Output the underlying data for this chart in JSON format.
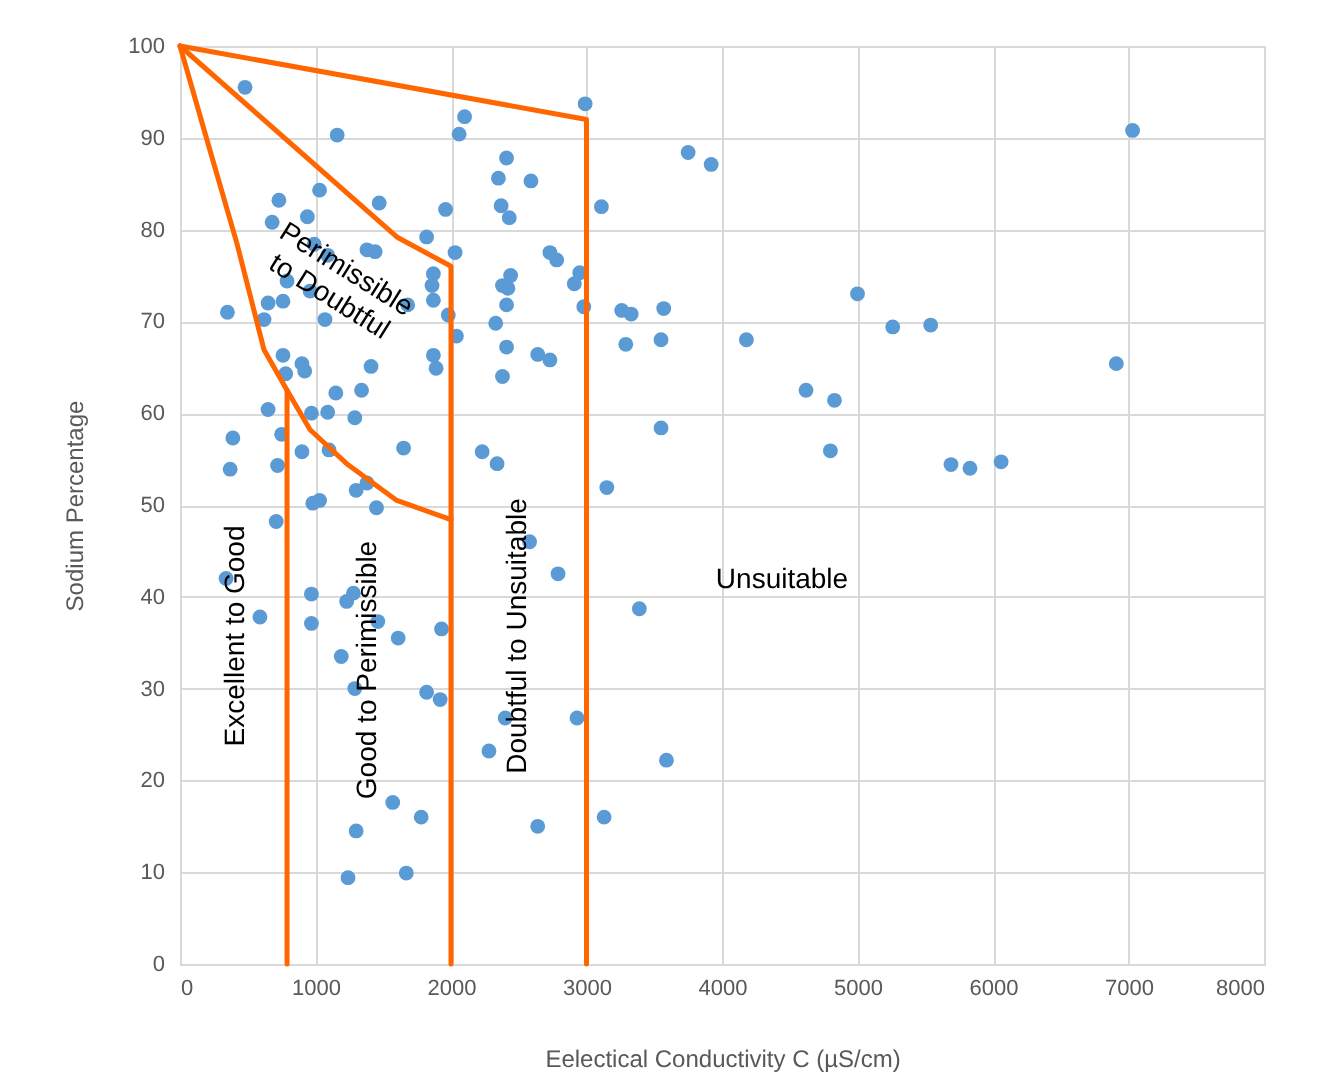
{
  "chart_data": {
    "type": "scatter",
    "xlabel": "Eelectical Conductivity C (µS/cm)",
    "ylabel": "Sodium Percentage",
    "xlim": [
      0,
      8000
    ],
    "xticks": [
      0,
      1000,
      2000,
      3000,
      4000,
      5000,
      6000,
      7000,
      8000
    ],
    "ylim": [
      0,
      100
    ],
    "yticks": [
      0,
      10,
      20,
      30,
      40,
      50,
      60,
      70,
      80,
      90,
      100
    ],
    "grid": true,
    "series": [
      {
        "marker": "circle",
        "color": "#5b9bd5",
        "x": [
          480,
          1160,
          2100,
          2060,
          2990,
          2410,
          2350,
          2590,
          1030,
          1470,
          730,
          2370,
          2430,
          1960,
          3110,
          680,
          940,
          1820,
          990,
          1440,
          1380,
          1090,
          2030,
          2730,
          2780,
          1870,
          2950,
          790,
          2440,
          2910,
          960,
          1860,
          2380,
          2420,
          650,
          760,
          350,
          1070,
          1680,
          1870,
          1980,
          2410,
          2980,
          620,
          2330,
          2040,
          2410,
          760,
          900,
          920,
          780,
          1410,
          1870,
          1890,
          2640,
          2730,
          2380,
          1150,
          1340,
          650,
          970,
          1090,
          1290,
          750,
          390,
          1650,
          2230,
          2340,
          370,
          720,
          900,
          1100,
          1300,
          1380,
          980,
          1030,
          1450,
          3150,
          710,
          340,
          590,
          970,
          970,
          1230,
          1280,
          1460,
          1610,
          1930,
          1190,
          1290,
          1820,
          1920,
          2580,
          2790,
          2400,
          2930,
          2280,
          1570,
          1780,
          1300,
          2640,
          3130,
          1240,
          1670,
          3750,
          3920,
          5000,
          3260,
          3330,
          3570,
          3290,
          3550,
          4180,
          5260,
          5540,
          4620,
          4830,
          3550,
          4800,
          5690,
          5830,
          6060,
          6910,
          7030,
          3390,
          3590
        ],
        "values": [
          95.5,
          90.3,
          92.3,
          90.4,
          93.7,
          87.8,
          85.6,
          85.3,
          84.3,
          82.9,
          83.2,
          82.6,
          81.3,
          82.2,
          82.5,
          80.8,
          81.4,
          79.2,
          78.4,
          77.6,
          77.8,
          77.2,
          77.5,
          77.5,
          76.7,
          75.2,
          75.3,
          74.4,
          75.0,
          74.1,
          73.3,
          73.9,
          73.9,
          73.6,
          72.0,
          72.2,
          71.0,
          70.2,
          71.8,
          72.3,
          70.7,
          71.8,
          71.6,
          70.2,
          69.8,
          68.4,
          67.2,
          66.3,
          65.4,
          64.6,
          64.3,
          65.1,
          66.3,
          64.9,
          66.4,
          65.8,
          64.0,
          62.2,
          62.5,
          60.4,
          60.0,
          60.1,
          59.5,
          57.7,
          57.3,
          56.2,
          55.8,
          54.5,
          53.9,
          54.3,
          55.8,
          56.0,
          51.6,
          52.4,
          50.2,
          50.5,
          49.7,
          51.9,
          48.2,
          42.0,
          37.8,
          40.3,
          37.1,
          39.5,
          40.4,
          37.3,
          35.5,
          36.5,
          33.5,
          30.0,
          29.6,
          28.8,
          46.0,
          42.5,
          26.8,
          26.8,
          23.2,
          17.6,
          16.0,
          14.5,
          15.0,
          16.0,
          9.4,
          9.9,
          88.4,
          87.1,
          73.0,
          71.2,
          70.8,
          71.4,
          67.5,
          68.0,
          68.0,
          69.4,
          69.6,
          62.5,
          61.4,
          58.4,
          55.9,
          54.4,
          54.0,
          54.7,
          65.4,
          90.8,
          38.7,
          22.2
        ]
      },
      {
        "type": "line",
        "color": "#ff6600",
        "x": [
          0,
          3000,
          3000
        ],
        "values": [
          100,
          92,
          0
        ]
      },
      {
        "type": "line",
        "color": "#ff6600",
        "x": [
          0,
          1600,
          2000,
          2000
        ],
        "values": [
          100,
          79.2,
          76,
          0
        ]
      },
      {
        "type": "line",
        "color": "#ff6600",
        "x": [
          0,
          220,
          420,
          620,
          790,
          960,
          1230,
          1600,
          2000
        ],
        "values": [
          100,
          88.7,
          78.5,
          66.9,
          62.5,
          58.2,
          54.5,
          50.5,
          48.4
        ]
      },
      {
        "type": "line",
        "color": "#ff6600",
        "x": [
          790,
          790
        ],
        "values": [
          62.5,
          0
        ]
      }
    ],
    "annotations": [
      "Perimissible\nto Doubtful",
      "Excellent to Good",
      "Good to Perimissible",
      "Doubtful to Unsuitable",
      "Unsuitable"
    ]
  }
}
